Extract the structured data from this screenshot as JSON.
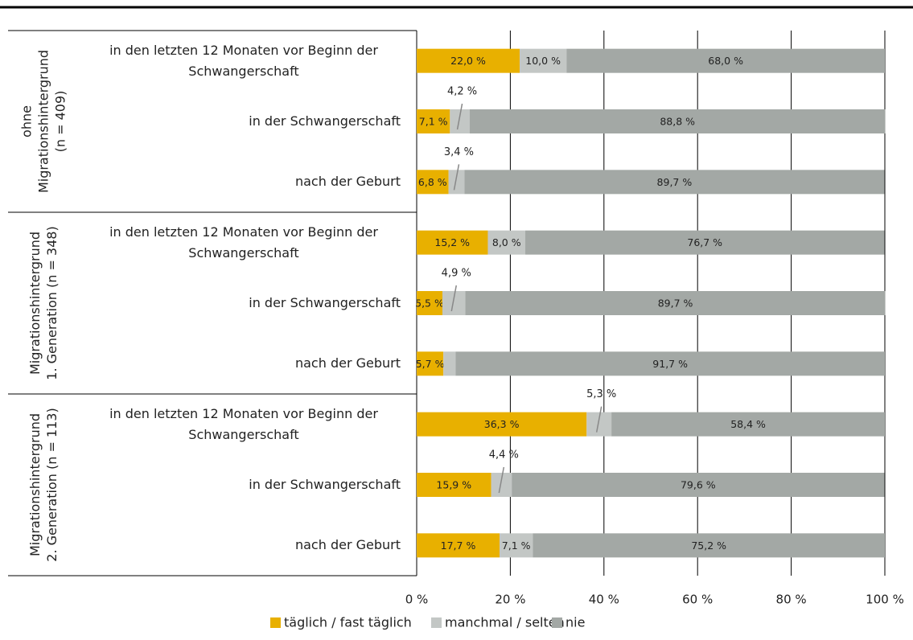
{
  "chart_data": {
    "type": "stacked-bar-horizontal",
    "groups": [
      {
        "lines": [
          "ohne",
          "Migrationshintergrund",
          "(n = 409)"
        ]
      },
      {
        "lines": [
          "Migrationshintergrund",
          "1. Generation (n = 348)"
        ]
      },
      {
        "lines": [
          "Migrationshintergrund",
          "2. Generation (n = 113)"
        ]
      }
    ],
    "categories": [
      "in den letzten 12 Monaten vor Beginn der Schwangerschaft",
      "in der Schwangerschaft",
      "nach der Geburt",
      "in den letzten 12 Monaten vor Beginn der Schwangerschaft",
      "in der Schwangerschaft",
      "nach der Geburt",
      "in den letzten 12 Monaten vor Beginn der Schwangerschaft",
      "in der Schwangerschaft",
      "nach der Geburt"
    ],
    "series": [
      {
        "name": "täglich / fast täglich",
        "color": "#e8b000",
        "values": [
          22.0,
          7.1,
          6.8,
          15.2,
          5.5,
          5.7,
          36.3,
          15.9,
          17.7
        ],
        "value_labels": [
          "22,0 %",
          "7,1 %",
          "6,8 %",
          "15,2 %",
          "5,5 %",
          "5,7 %",
          "36,3 %",
          "15,9 %",
          "17,7 %"
        ]
      },
      {
        "name": "manchmal / selten",
        "color": "#c3c7c5",
        "values": [
          10.0,
          4.2,
          3.4,
          8.0,
          4.9,
          2.6,
          5.3,
          4.4,
          7.1
        ],
        "value_labels": [
          "10,0 %",
          "4,2 %",
          "3,4 %",
          "8,0 %",
          "4,9 %",
          null,
          "5,3 %",
          "4,4 %",
          "7,1 %"
        ]
      },
      {
        "name": "nie",
        "color": "#a3a8a5",
        "values": [
          68.0,
          88.8,
          89.7,
          76.7,
          89.7,
          91.7,
          58.4,
          79.6,
          75.2
        ],
        "value_labels": [
          "68,0 %",
          "88,8 %",
          "89,7 %",
          "76,7 %",
          "89,7 %",
          "91,7 %",
          "58,4 %",
          "79,6 %",
          "75,2 %"
        ]
      }
    ],
    "xlim": [
      0,
      100
    ],
    "xticks": [
      {
        "value": 0,
        "label": "0 %"
      },
      {
        "value": 20,
        "label": "20 %"
      },
      {
        "value": 40,
        "label": "40 %"
      },
      {
        "value": 60,
        "label": "60 %"
      },
      {
        "value": 80,
        "label": "80 %"
      },
      {
        "value": 100,
        "label": "100 %"
      }
    ],
    "grid": true,
    "legend": "bottom"
  }
}
